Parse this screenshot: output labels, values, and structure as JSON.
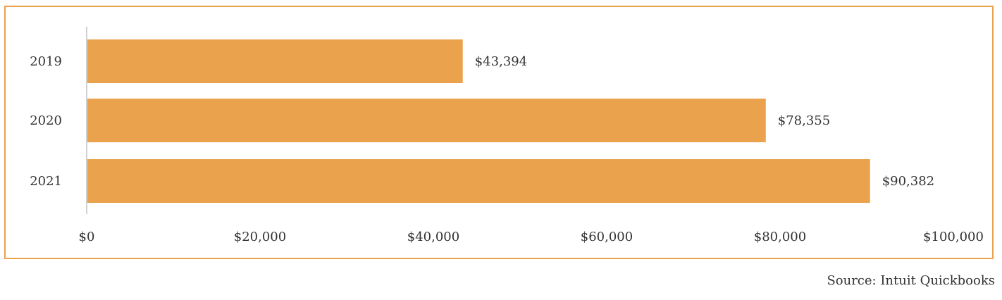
{
  "chart_data": {
    "type": "bar",
    "orientation": "horizontal",
    "categories": [
      "2019",
      "2020",
      "2021"
    ],
    "values": [
      43394,
      78355,
      90382
    ],
    "data_labels": [
      "$43,394",
      "$78,355",
      "$90,382"
    ],
    "xlim": [
      0,
      100000
    ],
    "x_ticks": [
      0,
      20000,
      40000,
      60000,
      80000,
      100000
    ],
    "x_tick_labels": [
      "$0",
      "$20,000",
      "$40,000",
      "$60,000",
      "$80,000",
      "$100,000"
    ],
    "title": "",
    "xlabel": "",
    "ylabel": "",
    "grid": false,
    "legend": "none",
    "bar_color": "#eaa24c",
    "frame_color": "#eaa24c",
    "axis_color": "#d0d0d0",
    "text_color": "#333333"
  },
  "source": "Source: Intuit Quickbooks"
}
